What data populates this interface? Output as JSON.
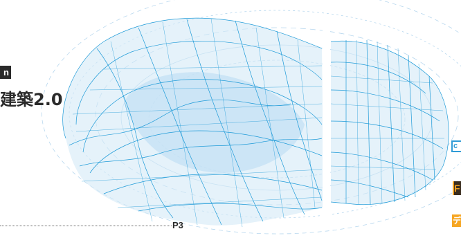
{
  "left": {
    "badge": "n",
    "title": "建築2.0",
    "page_ref": "P3"
  },
  "right_edge": {
    "blue_badge": "c",
    "dark_block": "F",
    "orange_label": "デ"
  },
  "colors": {
    "mesh": "#1f9bd8",
    "fill": "#d4e9f7",
    "rings": "#b7d7ee",
    "orange": "#f6a623",
    "text": "#2a2a2a"
  },
  "image": {
    "subject": "blue-wire-mesh-illustration"
  }
}
